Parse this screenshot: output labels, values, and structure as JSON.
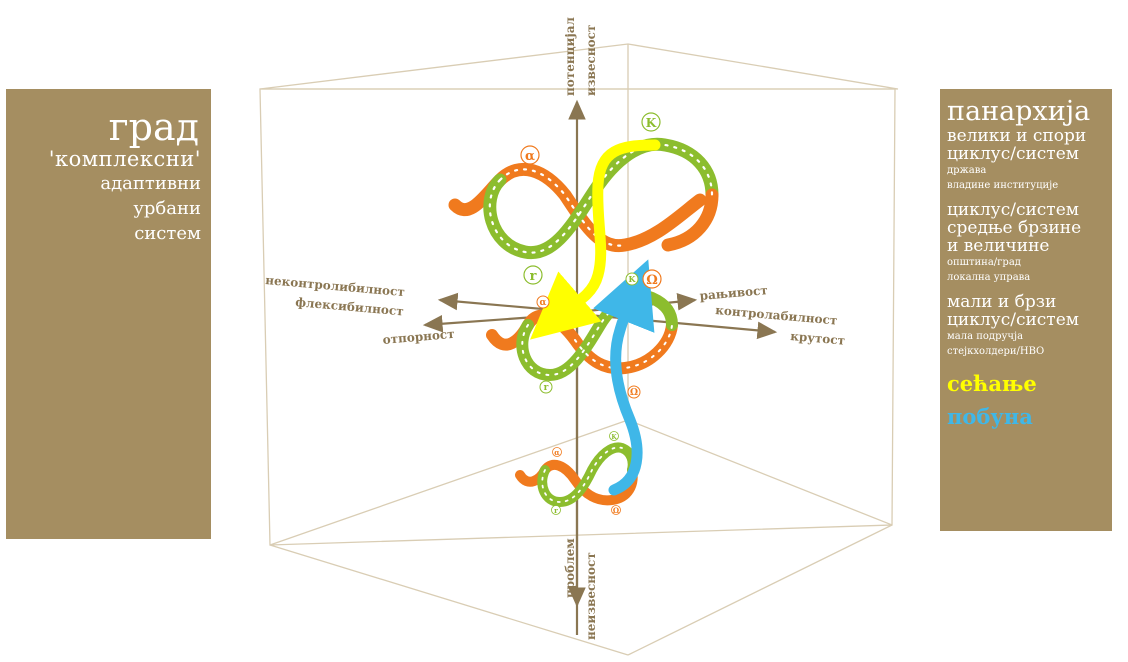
{
  "left_panel": {
    "title": "град",
    "subtitle": "'комплексни'",
    "line1": "адаптивни",
    "line2": "урбани",
    "line3": "систем"
  },
  "right_panel": {
    "title": "панархија",
    "big_slow_1": "велики и спори",
    "big_slow_2": "циклус/систем",
    "big_slow_sub1": "држава",
    "big_slow_sub2": "владине институције",
    "mid_1": "циклус/систем",
    "mid_2": "средње брзине",
    "mid_3": "и величине",
    "mid_sub1": "општина/град",
    "mid_sub2": "локална управа",
    "small_1": "мали и брзи",
    "small_2": "циклус/систем",
    "small_sub1": "мала подручја",
    "small_sub2": "стејкхолдери/НВО",
    "memory": "сећање",
    "revolt": "побуна"
  },
  "axes": {
    "top_1": "потенцијал",
    "top_2": "извесност",
    "bottom_1": "проблем",
    "bottom_2": "неизвесност",
    "left_1": "неконтролибилност",
    "left_2": "флексибилност",
    "left_3": "отпорност",
    "right_1": "рањивост",
    "right_2": "контролабилност",
    "right_3": "крутост"
  },
  "cycle_labels": {
    "alpha": "α",
    "k": "K",
    "r": "r",
    "omega": "Ω"
  },
  "colors": {
    "panel": "#a58e61",
    "orange": "#f07a1e",
    "green": "#8cbd2e",
    "yellow": "#ffff00",
    "blue": "#3fb7e8",
    "axis": "#8a7652"
  }
}
